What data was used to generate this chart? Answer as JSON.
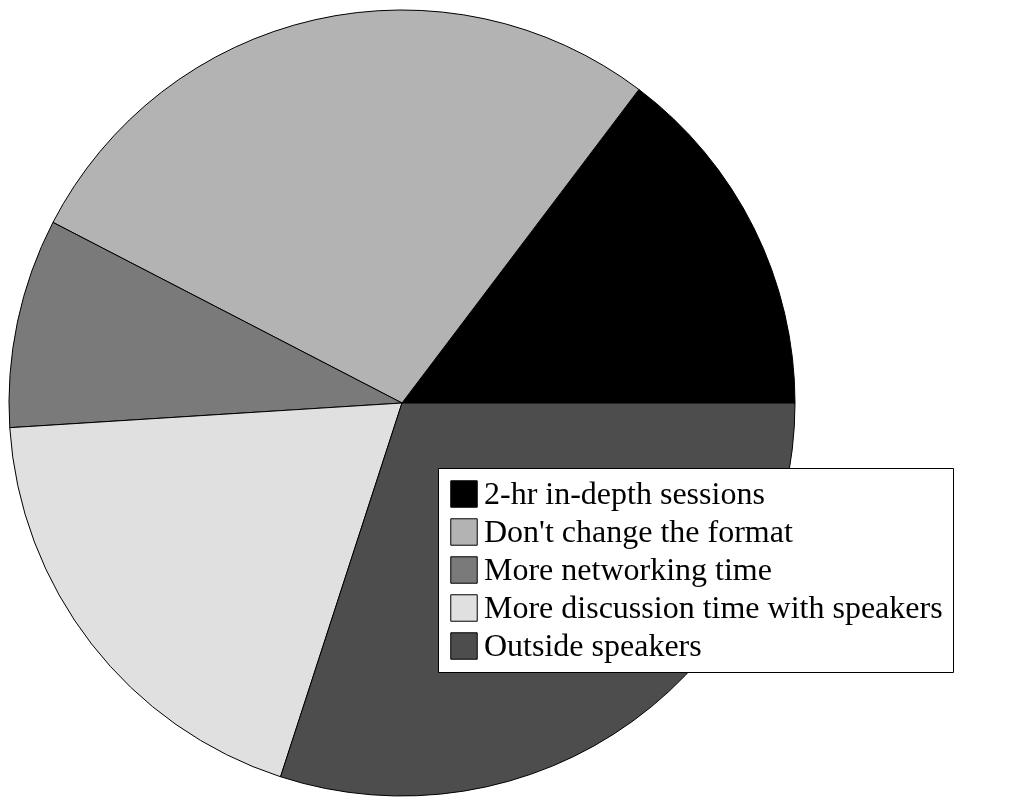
{
  "chart_data": {
    "type": "pie",
    "categories": [
      "2-hr in-depth sessions",
      "Don't change the format",
      "More networking time",
      "More discussion time with speakers",
      "Outside speakers"
    ],
    "values": [
      14.7,
      27.7,
      8.6,
      19.0,
      30.0
    ],
    "colors": [
      "#000000",
      "#b3b3b3",
      "#7a7a7a",
      "#e0e0e0",
      "#4d4d4d"
    ],
    "legend": "bottom right"
  }
}
